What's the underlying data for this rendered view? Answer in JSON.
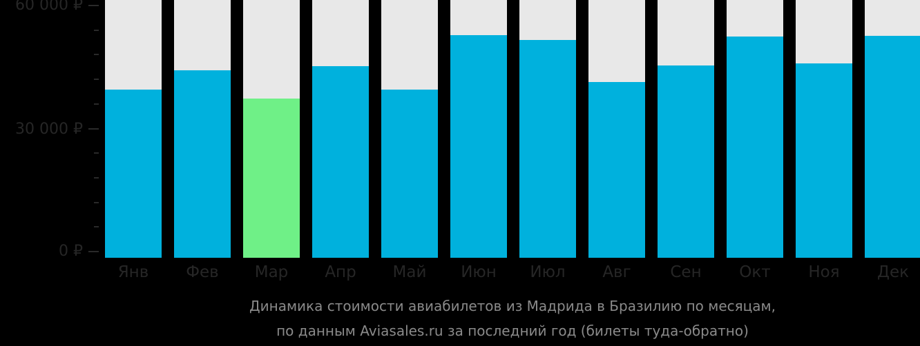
{
  "chart_data": {
    "type": "bar",
    "title": "Динамика стоимости авиабилетов из Мадрида в Бразилию по месяцам, по данным Aviasales.ru за последний год (билеты туда-обратно)",
    "xlabel": "",
    "ylabel": "",
    "ylim": [
      0,
      60000
    ],
    "yticks": [
      "0 ₽",
      "30 000 ₽",
      "60 000 ₽"
    ],
    "categories": [
      "Янв",
      "Фев",
      "Мар",
      "Апр",
      "Май",
      "Июн",
      "Июл",
      "Авг",
      "Сен",
      "Окт",
      "Ноя",
      "Дек"
    ],
    "values": [
      39500,
      44200,
      37300,
      45200,
      39500,
      52800,
      51600,
      41300,
      45400,
      52400,
      45900,
      52600
    ],
    "highlight_min": "Мар",
    "grid": false,
    "legend": null
  },
  "axis": {
    "y_labels": [
      {
        "text": "60 000 ₽",
        "value": 60000
      },
      {
        "text": "30 000 ₽",
        "value": 30000
      },
      {
        "text": "0 ₽",
        "value": 0
      }
    ]
  },
  "caption": {
    "line1": "Динамика стоимости авиабилетов из Мадрида в Бразилию по месяцам,",
    "line2": "по данным Aviasales.ru за последний год (билеты туда-обратно)"
  },
  "colors": {
    "bar": "#00b1dd",
    "bar_min": "#6ff087",
    "bar_background": "#e8e8e8",
    "background": "#000000"
  }
}
